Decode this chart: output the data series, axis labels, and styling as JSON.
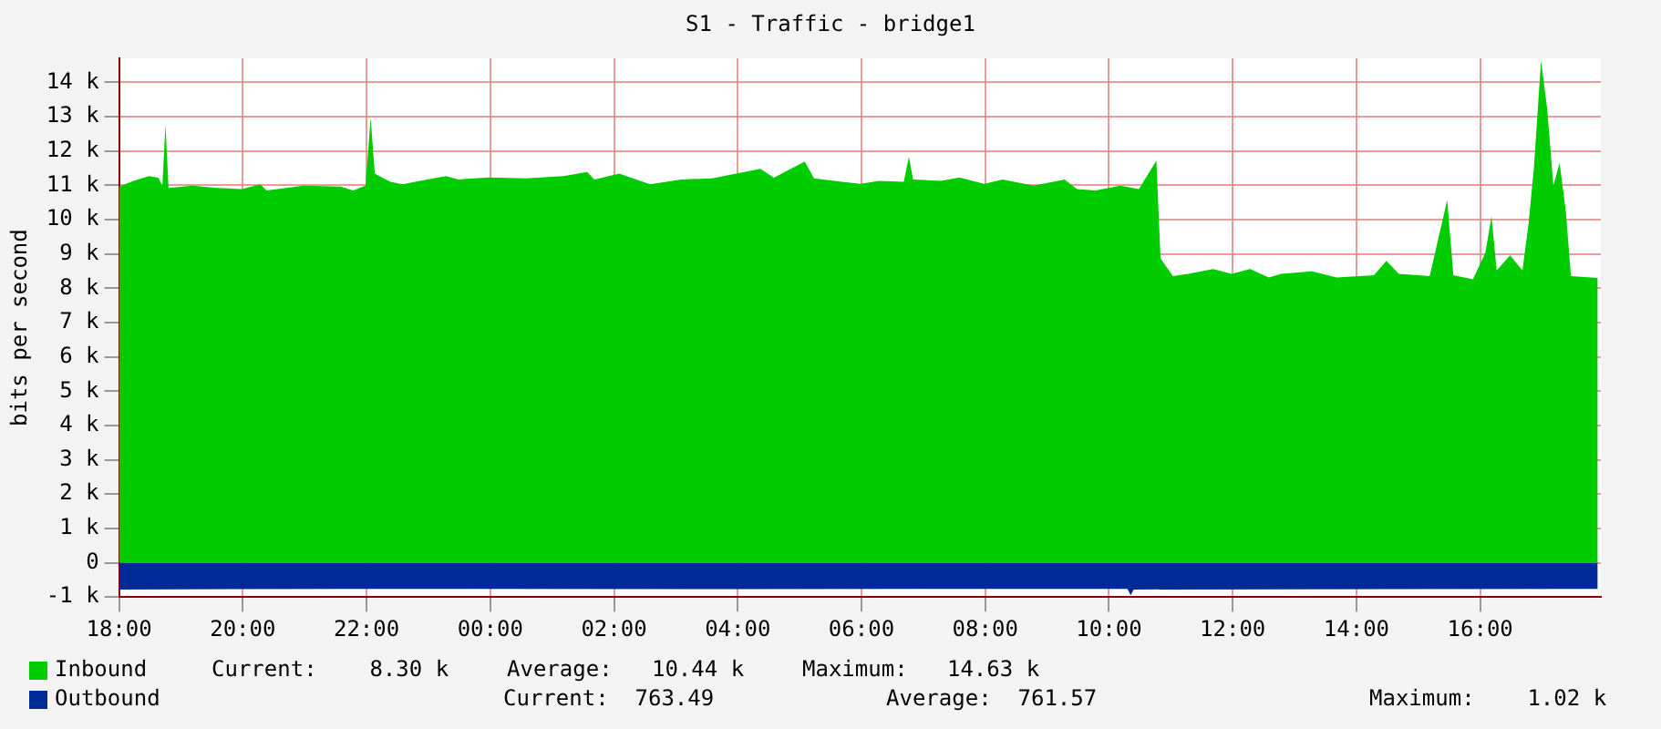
{
  "chart_data": {
    "type": "area",
    "title": "S1 - Traffic - bridge1",
    "ylabel": "bits per second",
    "xlim": [
      "2000-01-01T18:00",
      "2000-01-02T17:57"
    ],
    "xticks": [
      {
        "value": "2000-01-01T18:00",
        "label": "18:00"
      },
      {
        "value": "2000-01-01T20:00",
        "label": "20:00"
      },
      {
        "value": "2000-01-01T22:00",
        "label": "22:00"
      },
      {
        "value": "2000-01-02T00:00",
        "label": "00:00"
      },
      {
        "value": "2000-01-02T02:00",
        "label": "02:00"
      },
      {
        "value": "2000-01-02T04:00",
        "label": "04:00"
      },
      {
        "value": "2000-01-02T06:00",
        "label": "06:00"
      },
      {
        "value": "2000-01-02T08:00",
        "label": "08:00"
      },
      {
        "value": "2000-01-02T10:00",
        "label": "10:00"
      },
      {
        "value": "2000-01-02T12:00",
        "label": "12:00"
      },
      {
        "value": "2000-01-02T14:00",
        "label": "14:00"
      },
      {
        "value": "2000-01-02T16:00",
        "label": "16:00"
      }
    ],
    "ylim": [
      -1000,
      14700
    ],
    "yticks": [
      {
        "value": -1000,
        "label": "-1 k"
      },
      0,
      {
        "value": 1000,
        "label": "1 k"
      },
      {
        "value": 2000,
        "label": "2 k"
      },
      {
        "value": 3000,
        "label": "3 k"
      },
      {
        "value": 4000,
        "label": "4 k"
      },
      {
        "value": 5000,
        "label": "5 k"
      },
      {
        "value": 6000,
        "label": "6 k"
      },
      {
        "value": 7000,
        "label": "7 k"
      },
      {
        "value": 8000,
        "label": "8 k"
      },
      {
        "value": 9000,
        "label": "9 k"
      },
      {
        "value": 10000,
        "label": "10 k"
      },
      {
        "value": 11000,
        "label": "11 k"
      },
      {
        "value": 12000,
        "label": "12 k"
      },
      {
        "value": 13000,
        "label": "13 k"
      },
      {
        "value": 14000,
        "label": "14 k"
      }
    ],
    "grid": true,
    "legend": "bottom left",
    "series": [
      {
        "name": "Inbound",
        "color": "#00cc00",
        "x": [
          "2000-01-01T18:00",
          "2000-01-01T18:14",
          "2000-01-01T18:29",
          "2000-01-01T18:38",
          "2000-01-01T18:42",
          "2000-01-01T18:45",
          "2000-01-01T18:48",
          "2000-01-01T19:11",
          "2000-01-01T19:35",
          "2000-01-01T19:59",
          "2000-01-01T20:17",
          "2000-01-01T20:23",
          "2000-01-01T20:59",
          "2000-01-01T21:35",
          "2000-01-01T21:47",
          "2000-01-01T21:59",
          "2000-01-01T22:04",
          "2000-01-01T22:08",
          "2000-01-01T22:23",
          "2000-01-01T22:35",
          "2000-01-01T22:47",
          "2000-01-01T23:17",
          "2000-01-01T23:29",
          "2000-01-01T23:59",
          "2000-01-02T00:35",
          "2000-01-02T01:11",
          "2000-01-02T01:34",
          "2000-01-02T01:41",
          "2000-01-02T02:05",
          "2000-01-02T02:35",
          "2000-01-02T03:05",
          "2000-01-02T03:35",
          "2000-01-02T04:22",
          "2000-01-02T04:35",
          "2000-01-02T05:05",
          "2000-01-02T05:14",
          "2000-01-02T05:41",
          "2000-01-02T05:59",
          "2000-01-02T06:17",
          "2000-01-02T06:41",
          "2000-01-02T06:46",
          "2000-01-02T06:50",
          "2000-01-02T07:17",
          "2000-01-02T07:35",
          "2000-01-02T07:59",
          "2000-01-02T08:17",
          "2000-01-02T08:47",
          "2000-01-02T09:17",
          "2000-01-02T09:29",
          "2000-01-02T09:47",
          "2000-01-02T10:11",
          "2000-01-02T10:29",
          "2000-01-02T10:46",
          "2000-01-02T10:50",
          "2000-01-02T11:02",
          "2000-01-02T11:17",
          "2000-01-02T11:41",
          "2000-01-02T11:59",
          "2000-01-02T12:17",
          "2000-01-02T12:35",
          "2000-01-02T12:47",
          "2000-01-02T13:17",
          "2000-01-02T13:41",
          "2000-01-02T14:17",
          "2000-01-02T14:29",
          "2000-01-02T14:41",
          "2000-01-02T15:11",
          "2000-01-02T15:28",
          "2000-01-02T15:34",
          "2000-01-02T15:53",
          "2000-01-02T16:05",
          "2000-01-02T16:11",
          "2000-01-02T16:16",
          "2000-01-02T16:29",
          "2000-01-02T16:41",
          "2000-01-02T16:47",
          "2000-01-02T16:52",
          "2000-01-02T16:59",
          "2000-01-02T17:05",
          "2000-01-02T17:11",
          "2000-01-02T17:17",
          "2000-01-02T17:23",
          "2000-01-02T17:28",
          "2000-01-02T17:54"
        ],
        "values": [
          10960,
          11130,
          11270,
          11220,
          10990,
          12770,
          10920,
          10990,
          10920,
          10890,
          11030,
          10850,
          10990,
          10960,
          10850,
          10990,
          12970,
          11340,
          11100,
          11030,
          11100,
          11270,
          11170,
          11230,
          11200,
          11270,
          11390,
          11170,
          11340,
          11030,
          11170,
          11200,
          11480,
          11220,
          11690,
          11200,
          11100,
          11040,
          11130,
          11100,
          11830,
          11170,
          11130,
          11230,
          11040,
          11170,
          10990,
          11170,
          10890,
          10850,
          10990,
          10890,
          11720,
          8870,
          8350,
          8420,
          8560,
          8420,
          8560,
          8310,
          8420,
          8490,
          8310,
          8380,
          8800,
          8420,
          8350,
          10570,
          8380,
          8260,
          9040,
          10090,
          8520,
          8960,
          8520,
          9910,
          11480,
          14630,
          13220,
          10990,
          11650,
          10260,
          8350,
          8300
        ]
      },
      {
        "name": "Outbound",
        "color": "#002a97",
        "x": [
          "2000-01-01T18:00",
          "2000-01-01T22:00",
          "2000-01-02T04:00",
          "2000-01-02T10:18",
          "2000-01-02T10:21",
          "2000-01-02T10:24",
          "2000-01-02T17:54"
        ],
        "values": [
          -780,
          -760,
          -770,
          -760,
          -950,
          -780,
          -760
        ]
      }
    ],
    "annotations": [
      "Current:    8.30 k",
      "Average:   10.44 k",
      "Maximum:   14.63 k",
      "Current:  763.49",
      "Average:  761.57",
      "Maximum:    1.02 k"
    ]
  }
}
